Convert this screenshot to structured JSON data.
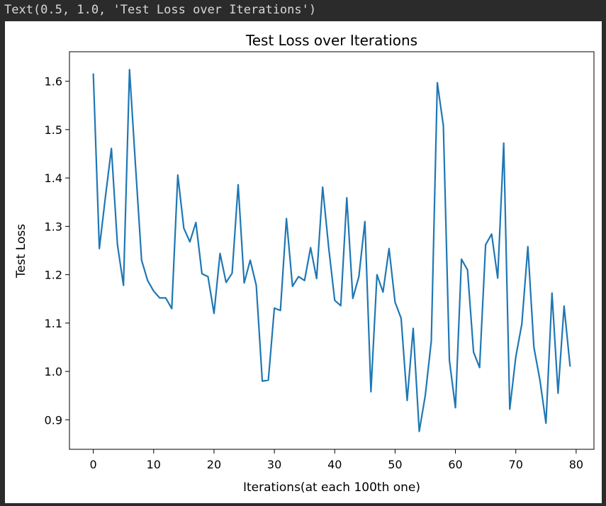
{
  "output_line": "Text(0.5, 1.0, 'Test Loss over Iterations')",
  "chart_data": {
    "type": "line",
    "title": "Test Loss over Iterations",
    "xlabel": "Iterations(at each 100th one)",
    "ylabel": "Test Loss",
    "xlim": [
      -3.95,
      82.95
    ],
    "ylim": [
      0.839,
      1.661
    ],
    "xticks": [
      0,
      10,
      20,
      30,
      40,
      50,
      60,
      70,
      80
    ],
    "yticks": [
      0.9,
      1.0,
      1.1,
      1.2,
      1.3,
      1.4,
      1.5,
      1.6
    ],
    "ytick_labels": [
      "0.9",
      "1.0",
      "1.1",
      "1.2",
      "1.3",
      "1.4",
      "1.5",
      "1.6"
    ],
    "grid": false,
    "line_color": "#1f77b4",
    "series": [
      {
        "x": [
          0,
          1,
          2,
          3,
          4,
          5,
          6,
          7,
          8,
          9,
          10,
          11,
          12,
          13,
          14,
          15,
          16,
          17,
          18,
          19,
          20,
          21,
          22,
          23,
          24,
          25,
          26,
          27,
          28,
          29,
          30,
          31,
          32,
          33,
          34,
          35,
          36,
          37,
          38,
          39,
          40,
          41,
          42,
          43,
          44,
          45,
          46,
          47,
          48,
          49,
          50,
          51,
          52,
          53,
          54,
          55,
          56,
          57,
          58,
          59,
          60,
          61,
          62,
          63,
          64,
          65,
          66,
          67,
          68,
          69,
          70,
          71,
          72,
          73,
          74,
          75,
          76,
          77,
          78,
          79
        ],
        "values": [
          1.616,
          1.254,
          1.36,
          1.461,
          1.262,
          1.178,
          1.624,
          1.424,
          1.23,
          1.188,
          1.166,
          1.152,
          1.152,
          1.13,
          1.406,
          1.296,
          1.268,
          1.308,
          1.202,
          1.196,
          1.12,
          1.244,
          1.184,
          1.203,
          1.386,
          1.183,
          1.23,
          1.178,
          0.98,
          0.982,
          1.131,
          1.126,
          1.316,
          1.176,
          1.196,
          1.188,
          1.256,
          1.192,
          1.381,
          1.256,
          1.147,
          1.136,
          1.359,
          1.151,
          1.196,
          1.31,
          0.958,
          1.2,
          1.164,
          1.254,
          1.143,
          1.11,
          0.94,
          1.089,
          0.876,
          0.95,
          1.063,
          1.597,
          1.508,
          1.023,
          0.925,
          1.232,
          1.21,
          1.04,
          1.008,
          1.262,
          1.284,
          1.193,
          1.472,
          0.922,
          1.03,
          1.098,
          1.258,
          1.05,
          0.982,
          0.893,
          1.162,
          0.955,
          1.135,
          1.01
        ]
      }
    ]
  }
}
